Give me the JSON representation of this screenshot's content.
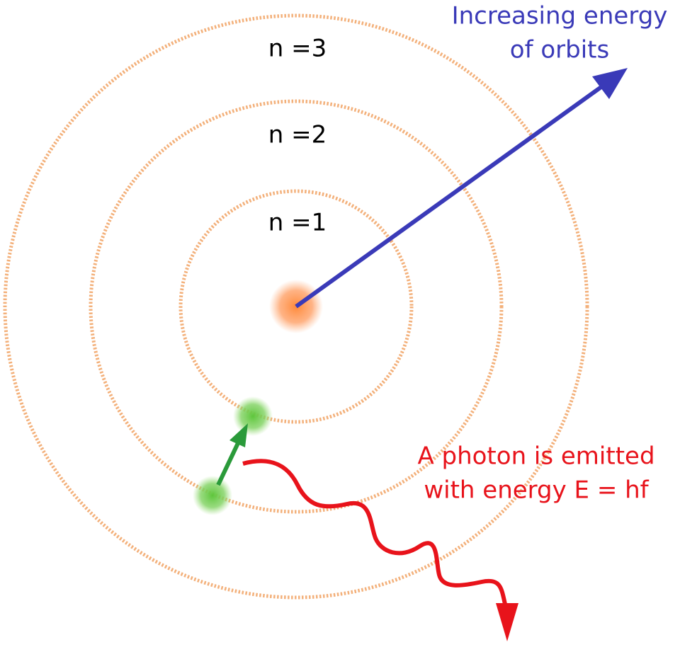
{
  "orbits": [
    {
      "label": "n =1"
    },
    {
      "label": "n =2"
    },
    {
      "label": "n =3"
    }
  ],
  "energy_label": [
    "Increasing energy",
    "of orbits"
  ],
  "photon_label": [
    "A photon is emitted",
    "with energy E = hf"
  ]
}
